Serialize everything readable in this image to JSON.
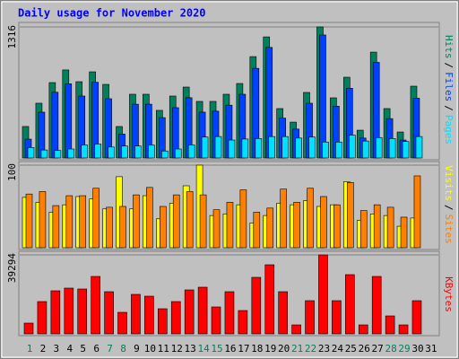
{
  "chart_data": {
    "type": "bar",
    "title": "Daily usage for November 2020",
    "categories": [
      "1",
      "2",
      "3",
      "4",
      "5",
      "6",
      "7",
      "8",
      "9",
      "10",
      "11",
      "12",
      "13",
      "14",
      "15",
      "16",
      "17",
      "18",
      "19",
      "20",
      "21",
      "22",
      "23",
      "24",
      "25",
      "26",
      "27",
      "28",
      "29",
      "30",
      "31"
    ],
    "label_colors": [
      "#00805c",
      "#000000",
      "#000000",
      "#000000",
      "#000000",
      "#000000",
      "#00805c",
      "#00805c",
      "#000000",
      "#000000",
      "#000000",
      "#000000",
      "#000000",
      "#00805c",
      "#00805c",
      "#000000",
      "#000000",
      "#000000",
      "#000000",
      "#000000",
      "#00805c",
      "#00805c",
      "#000000",
      "#000000",
      "#000000",
      "#000000",
      "#000000",
      "#00805c",
      "#00805c",
      "#000000",
      "#000000"
    ],
    "axis_separator": "/",
    "panels": [
      {
        "ylim": [
          0,
          1316
        ],
        "yticks": [
          1316
        ],
        "series": [
          {
            "name": "Hits",
            "color": "#00805c",
            "values": [
              316,
              550,
              757,
              884,
              766,
              865,
              739,
              316,
              640,
              640,
              478,
              622,
              712,
              568,
              568,
              640,
              748,
              1018,
              1216,
              496,
              360,
              658,
              1316,
              604,
              811,
              279,
              1063,
              496,
              261,
              721,
              null
            ]
          },
          {
            "name": "Files",
            "color": "#0040ff",
            "values": [
              189,
              460,
              660,
              745,
              622,
              760,
              595,
              240,
              540,
              540,
              405,
              505,
              605,
              460,
              470,
              530,
              640,
              900,
              1110,
              400,
              290,
              550,
              1235,
              520,
              700,
              200,
              960,
              395,
              180,
              600,
              null
            ]
          },
          {
            "name": "Pages",
            "color": "#00e0ff",
            "values": [
              105,
              80,
              75,
              90,
              130,
              140,
              110,
              120,
              120,
              130,
              70,
              90,
              130,
              210,
              215,
              180,
              190,
              195,
              215,
              215,
              200,
              210,
              160,
              160,
              230,
              170,
              205,
              195,
              165,
              215,
              null
            ]
          }
        ]
      },
      {
        "ylim": [
          0,
          100
        ],
        "yticks": [
          100
        ],
        "series": [
          {
            "name": "Visits",
            "color": "#ffff00",
            "values": [
              61,
              55,
              43,
              52,
              62,
              59,
              47,
              86,
              47,
              63,
              35,
              54,
              75,
              100,
              39,
              41,
              52,
              30,
              39,
              54,
              52,
              57,
              50,
              52,
              80,
              33,
              41,
              39,
              26,
              36,
              null
            ]
          },
          {
            "name": "Sites",
            "color": "#ff8000",
            "values": [
              65,
              68,
              51,
              63,
              63,
              72,
              49,
              50,
              64,
              73,
              50,
              64,
              68,
              64,
              46,
              55,
              70,
              43,
              48,
              71,
              55,
              72,
              62,
              52,
              79,
              45,
              52,
              49,
              37,
              87,
              null
            ]
          }
        ]
      },
      {
        "ylim": [
          0,
          39294
        ],
        "yticks": [
          39294
        ],
        "series": [
          {
            "name": "KBytes",
            "color": "#ff0000",
            "values": [
              5358,
              16074,
              21432,
              22772,
              22325,
              28576,
              20986,
              10716,
              19646,
              18753,
              12502,
              16074,
              21879,
              23218,
              13395,
              20986,
              11609,
              28130,
              34381,
              20986,
              4465,
              16521,
              39294,
              16521,
              29469,
              4465,
              28576,
              8930,
              4465,
              16521,
              null
            ]
          }
        ]
      }
    ]
  }
}
